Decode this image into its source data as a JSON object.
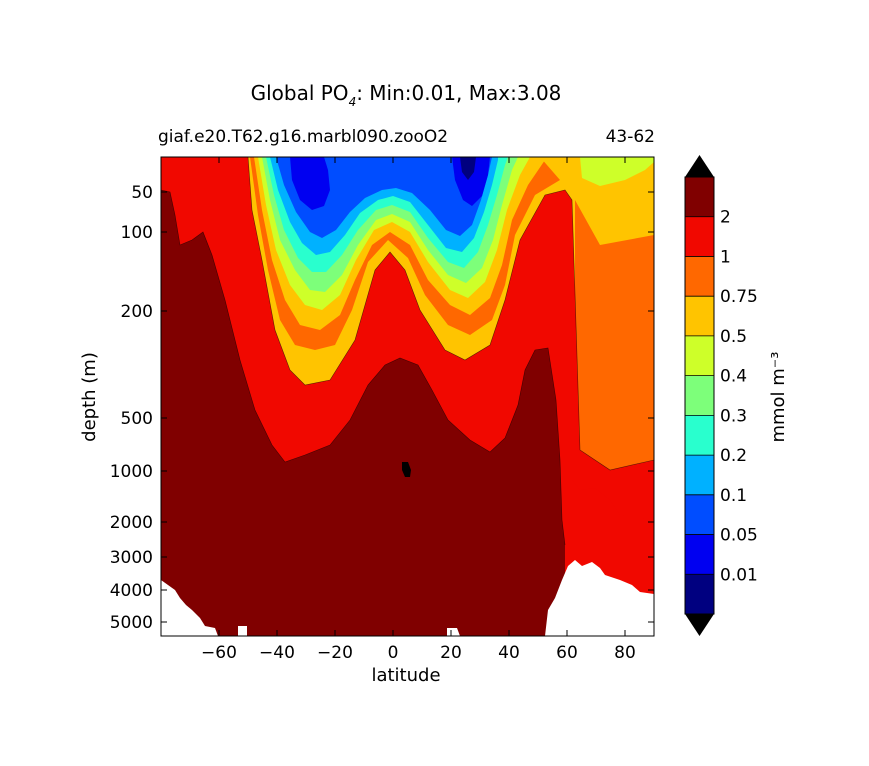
{
  "chart_data": {
    "type": "heatmap",
    "title_main": "Global PO",
    "title_sub": "4",
    "title_rest": ": Min:0.01, Max:3.08",
    "subtitle_left": "giaf.e20.T62.g16.marbl090.zooO2",
    "subtitle_right": "43-62",
    "xlabel": "latitude",
    "ylabel": "depth (m)",
    "xlim": [
      -80,
      90
    ],
    "ylim_depth": [
      5500,
      5
    ],
    "y_scale": "log-like (depth)",
    "xticks": [
      -60,
      -40,
      -20,
      0,
      20,
      40,
      60,
      80
    ],
    "xtick_labels": [
      "−60",
      "−40",
      "−20",
      "0",
      "20",
      "40",
      "60",
      "80"
    ],
    "yticks": [
      50,
      100,
      200,
      500,
      1000,
      2000,
      3000,
      4000,
      5000
    ],
    "ytick_labels": [
      "50",
      "100",
      "200",
      "500",
      "1000",
      "2000",
      "3000",
      "4000",
      "5000"
    ],
    "colorbar": {
      "label": "mmol m⁻³",
      "levels": [
        0.01,
        0.05,
        0.1,
        0.2,
        0.3,
        0.4,
        0.5,
        0.75,
        1,
        2
      ],
      "level_labels": [
        "0.01",
        "0.05",
        "0.1",
        "0.2",
        "0.3",
        "0.4",
        "0.5",
        "0.75",
        "1",
        "2"
      ],
      "colors": [
        "#000080",
        "#0000f1",
        "#004dff",
        "#00b1ff",
        "#29ffce",
        "#7dff7a",
        "#ceff29",
        "#ffc400",
        "#ff6800",
        "#f10800",
        "#800000"
      ],
      "extend": "both",
      "extend_color": "#000000"
    },
    "missing_color": "#ffffff"
  }
}
